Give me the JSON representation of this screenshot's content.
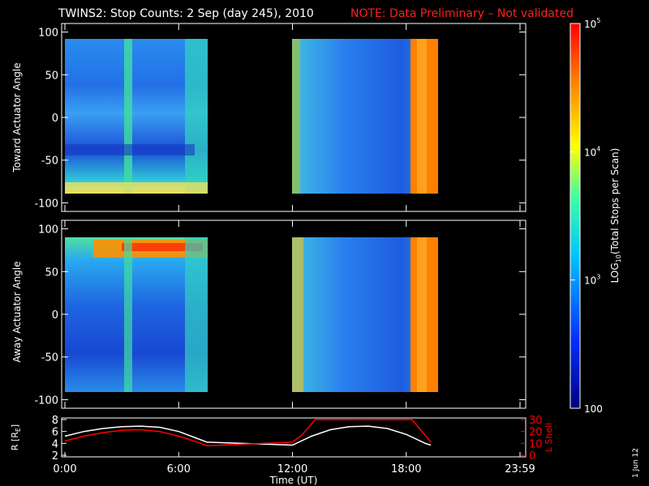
{
  "title": {
    "main": "TWINS2: Stop Counts:  2 Sep (day 245), 2010",
    "note": "NOTE: Data Preliminary – Not validated"
  },
  "side_label": "1 Jun 12",
  "colors": {
    "background": "#000000",
    "axis": "#ffffff",
    "note": "#ff2020",
    "lshell": "#ff0000",
    "r_line": "#ffffff"
  },
  "chart_data": [
    {
      "type": "heatmap",
      "panel": "toward",
      "ylabel": "Toward Actuator Angle",
      "ylim": [
        -110,
        110
      ],
      "yticks": [
        100,
        50,
        0,
        -50,
        -100
      ],
      "xlim": [
        0,
        24
      ],
      "data_intervals_hours": [
        [
          0,
          7.5
        ],
        [
          12,
          19.3
        ]
      ],
      "angle_range": [
        -90,
        90
      ],
      "features": [
        {
          "x": [
            3.2,
            3.5
          ],
          "level": "moderate"
        },
        {
          "x": [
            18.2,
            19.3
          ],
          "level": "high"
        }
      ]
    },
    {
      "type": "heatmap",
      "panel": "away",
      "ylabel": "Away Actuator Angle",
      "ylim": [
        -110,
        110
      ],
      "yticks": [
        100,
        50,
        0,
        -50,
        -100
      ],
      "xlim": [
        0,
        24
      ],
      "data_intervals_hours": [
        [
          0,
          7.5
        ],
        [
          12,
          19.3
        ]
      ],
      "angle_range": [
        -90,
        90
      ],
      "features": [
        {
          "x": [
            1.5,
            7.5
          ],
          "y": [
            70,
            90
          ],
          "level": "high"
        },
        {
          "x": [
            18.2,
            19.3
          ],
          "level": "high"
        }
      ]
    },
    {
      "type": "line",
      "panel": "orbit",
      "ylabel": "R [R",
      "ylabel_sub": "E",
      "ylabel_close": "]",
      "ylim": [
        2,
        8
      ],
      "yticks": [
        2,
        4,
        6,
        8
      ],
      "y2label": "L Shell",
      "y2lim": [
        0,
        30
      ],
      "y2ticks": [
        0,
        10,
        20,
        30
      ],
      "xlabel": "Time (UT)",
      "xticks": [
        "0:00",
        "6:00",
        "12:00",
        "18:00",
        "23:59"
      ],
      "xtick_hours": [
        0,
        6,
        12,
        18,
        24
      ],
      "series": [
        {
          "axis": "left",
          "color": "#ffffff",
          "x": [
            0,
            1,
            2,
            3,
            4,
            5,
            6,
            7,
            7.5,
            12,
            13,
            14,
            15,
            16,
            17,
            18,
            19,
            19.3
          ],
          "y": [
            5.2,
            6.0,
            6.5,
            6.8,
            6.9,
            6.7,
            6.0,
            4.8,
            4.2,
            3.7,
            5.2,
            6.3,
            6.8,
            6.9,
            6.5,
            5.5,
            4.0,
            3.7
          ]
        },
        {
          "axis": "right",
          "color": "#ff0000",
          "x": [
            0,
            1,
            2,
            3,
            4,
            5,
            6,
            7,
            7.5,
            12,
            12.5,
            13.2,
            18.3,
            19.3
          ],
          "y": [
            12,
            16,
            19,
            21,
            21.5,
            20,
            16,
            11,
            8,
            11,
            17,
            30,
            30,
            11
          ]
        }
      ]
    },
    {
      "type": "colorbar",
      "label": "LOG",
      "label_sub": "10",
      "label_rest": "(Total Stops per Scan)",
      "scale": "log",
      "range": [
        100,
        100000
      ],
      "ticks": [
        {
          "base": "10",
          "exp": "5",
          "value": 100000
        },
        {
          "base": "10",
          "exp": "4",
          "value": 10000
        },
        {
          "base": "10",
          "exp": "3",
          "value": 1000
        },
        {
          "text": "100",
          "value": 100
        }
      ]
    }
  ]
}
